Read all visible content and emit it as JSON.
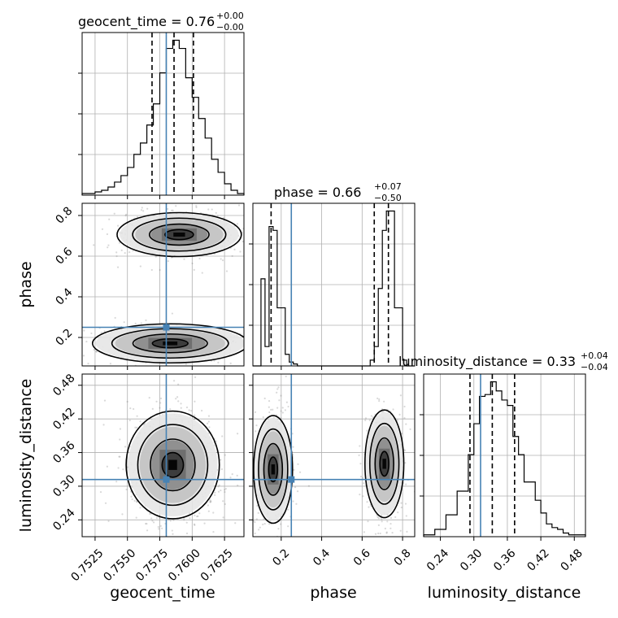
{
  "chart_data": {
    "type": "corner",
    "parameters": [
      "geocent_time",
      "phase",
      "luminosity_distance"
    ],
    "truths": {
      "geocent_time": 0.758,
      "phase": 0.25,
      "luminosity_distance": 0.312
    },
    "accent_color": "#4682b4",
    "titles": {
      "geocent_time": {
        "label": "geocent_time",
        "value": "0.76",
        "plus": "+0.00",
        "minus": "−0.00"
      },
      "phase": {
        "label": "phase",
        "value": "0.66",
        "plus": "+0.07",
        "minus": "−0.50"
      },
      "luminosity_distance": {
        "label": "luminosity_distance",
        "value": "0.33",
        "plus": "+0.04",
        "minus": "−0.04"
      }
    },
    "axes": {
      "geocent_time": {
        "range": [
          0.7515,
          0.764
        ],
        "ticks": [
          0.7525,
          0.755,
          0.7575,
          0.76,
          0.7625
        ],
        "tick_labels": [
          "0.7525",
          "0.7550",
          "0.7575",
          "0.7600",
          "0.7625"
        ]
      },
      "phase": {
        "range": [
          0.06,
          0.86
        ],
        "ticks": [
          0.2,
          0.4,
          0.6,
          0.8
        ],
        "tick_labels": [
          "0.2",
          "0.4",
          "0.6",
          "0.8"
        ]
      },
      "luminosity_distance": {
        "range": [
          0.21,
          0.5
        ],
        "ticks": [
          0.24,
          0.3,
          0.36,
          0.42,
          0.48
        ],
        "tick_labels": [
          "0.24",
          "0.30",
          "0.36",
          "0.42",
          "0.48"
        ]
      }
    },
    "histograms": {
      "geocent_time": {
        "bins": [
          0.7515,
          0.75175,
          0.752,
          0.75225,
          0.7525,
          0.75275,
          0.753,
          0.75325,
          0.7535,
          0.75375,
          0.754,
          0.75425,
          0.7545,
          0.75475,
          0.755,
          0.75525,
          0.7555,
          0.75575,
          0.756,
          0.75625,
          0.7565,
          0.75675,
          0.757,
          0.75725,
          0.7575,
          0.75775,
          0.758,
          0.75825,
          0.7585,
          0.75875,
          0.759,
          0.75925,
          0.7595,
          0.75975,
          0.76,
          0.76025,
          0.7605,
          0.76075,
          0.761,
          0.76125,
          0.7615,
          0.76175,
          0.762,
          0.76225,
          0.7625,
          0.76275,
          0.763,
          0.76325,
          0.7635,
          0.76375,
          0.764
        ],
        "counts": [
          1,
          1,
          1,
          1,
          2,
          2,
          3,
          3,
          5,
          5,
          8,
          8,
          12,
          12,
          17,
          17,
          25,
          25,
          32,
          32,
          43,
          43,
          56,
          56,
          75,
          75,
          90,
          90,
          95,
          95,
          90,
          90,
          72,
          72,
          60,
          60,
          47,
          47,
          35,
          35,
          22,
          22,
          14,
          14,
          7,
          7,
          3,
          3,
          1,
          1
        ],
        "quantiles": [
          0.7569,
          0.7586,
          0.7601
        ]
      },
      "phase": {
        "bins": [
          0.06,
          0.08,
          0.1,
          0.12,
          0.14,
          0.16,
          0.18,
          0.2,
          0.22,
          0.24,
          0.26,
          0.28,
          0.3,
          0.32,
          0.34,
          0.36,
          0.38,
          0.4,
          0.42,
          0.44,
          0.46,
          0.48,
          0.5,
          0.52,
          0.54,
          0.56,
          0.58,
          0.6,
          0.62,
          0.64,
          0.66,
          0.68,
          0.7,
          0.72,
          0.74,
          0.76,
          0.78,
          0.8,
          0.82,
          0.84,
          0.86
        ],
        "counts": [
          0,
          0,
          45,
          10,
          72,
          70,
          30,
          30,
          6,
          2,
          1,
          0,
          0,
          0,
          0,
          0,
          0,
          0,
          0,
          0,
          0,
          0,
          0,
          0,
          0,
          0,
          0,
          0,
          0,
          3,
          10,
          40,
          70,
          80,
          80,
          30,
          30,
          3,
          0,
          0
        ],
        "quantiles": [
          0.15,
          0.66,
          0.73
        ]
      },
      "luminosity_distance": {
        "bins": [
          0.21,
          0.22,
          0.23,
          0.24,
          0.25,
          0.26,
          0.27,
          0.28,
          0.29,
          0.3,
          0.31,
          0.32,
          0.33,
          0.34,
          0.35,
          0.36,
          0.37,
          0.38,
          0.39,
          0.4,
          0.41,
          0.42,
          0.43,
          0.44,
          0.45,
          0.46,
          0.47,
          0.48,
          0.49,
          0.5
        ],
        "counts": [
          1,
          1,
          4,
          4,
          12,
          12,
          25,
          25,
          45,
          62,
          77,
          78,
          85,
          80,
          75,
          72,
          55,
          45,
          30,
          30,
          20,
          13,
          7,
          5,
          4,
          2,
          1,
          1,
          1
        ],
        "quantiles": [
          0.293,
          0.333,
          0.373
        ]
      }
    },
    "contour_2d": [
      {
        "x": "geocent_time",
        "y": "phase",
        "blobs": [
          {
            "cx": 0.759,
            "cy": 0.706,
            "sx": 0.002,
            "sy": 0.045,
            "n": 520
          },
          {
            "cx": 0.7583,
            "cy": 0.171,
            "sx": 0.0025,
            "sy": 0.04,
            "n": 360
          }
        ]
      },
      {
        "x": "geocent_time",
        "y": "luminosity_distance",
        "blobs": [
          {
            "cx": 0.7585,
            "cy": 0.338,
            "sx": 0.0015,
            "sy": 0.04,
            "n": 780
          }
        ]
      },
      {
        "x": "phase",
        "y": "luminosity_distance",
        "blobs": [
          {
            "cx": 0.16,
            "cy": 0.33,
            "sx": 0.04,
            "sy": 0.04,
            "n": 380
          },
          {
            "cx": 0.71,
            "cy": 0.34,
            "sx": 0.04,
            "sy": 0.04,
            "n": 480
          }
        ]
      }
    ]
  }
}
